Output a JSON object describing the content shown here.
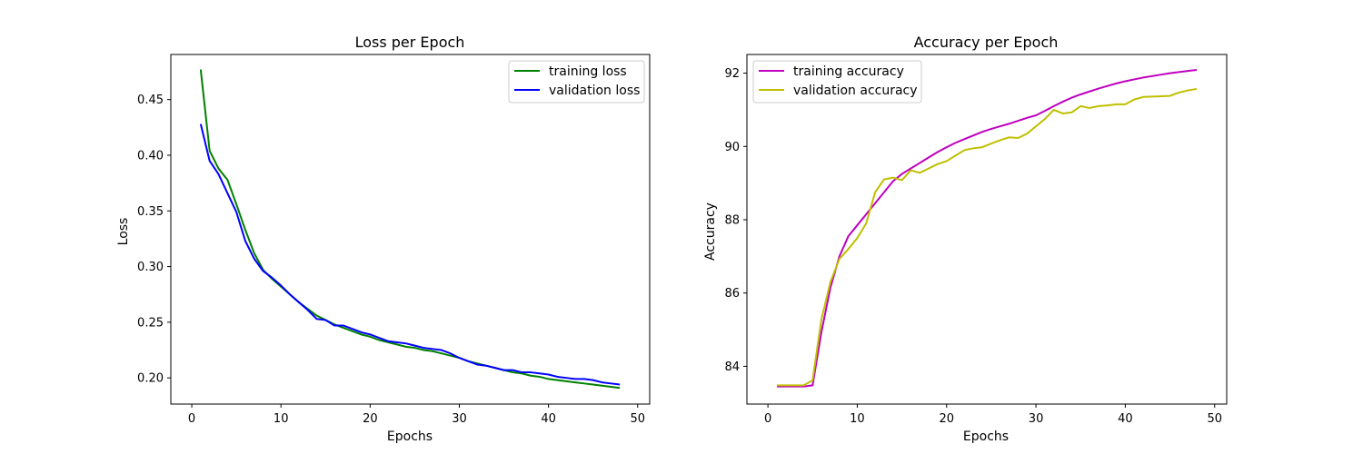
{
  "chart_data": [
    {
      "type": "line",
      "title": "Loss per Epoch",
      "xlabel": "Epochs",
      "ylabel": "Loss",
      "xlim": [
        -2.35,
        51.35
      ],
      "ylim": [
        0.1765,
        0.4905
      ],
      "xticks": [
        0,
        10,
        20,
        30,
        40,
        50
      ],
      "xtick_labels": [
        "0",
        "10",
        "20",
        "30",
        "40",
        "50"
      ],
      "yticks": [
        0.2,
        0.25,
        0.3,
        0.35,
        0.4,
        0.45
      ],
      "ytick_labels": [
        "0.20",
        "0.25",
        "0.30",
        "0.35",
        "0.40",
        "0.45"
      ],
      "grid": false,
      "legend": "top-right",
      "x": [
        1,
        2,
        3,
        4,
        5,
        6,
        7,
        8,
        9,
        10,
        11,
        12,
        13,
        14,
        15,
        16,
        17,
        18,
        19,
        20,
        21,
        22,
        23,
        24,
        25,
        26,
        27,
        28,
        29,
        30,
        31,
        32,
        33,
        34,
        35,
        36,
        37,
        38,
        39,
        40,
        41,
        42,
        43,
        44,
        45,
        46,
        47,
        48
      ],
      "series": [
        {
          "name": "training loss",
          "color": "#008000",
          "values": [
            0.477,
            0.404,
            0.388,
            0.378,
            0.356,
            0.333,
            0.312,
            0.297,
            0.289,
            0.282,
            0.275,
            0.268,
            0.262,
            0.256,
            0.252,
            0.248,
            0.245,
            0.242,
            0.239,
            0.237,
            0.234,
            0.232,
            0.23,
            0.228,
            0.227,
            0.225,
            0.224,
            0.222,
            0.22,
            0.218,
            0.215,
            0.213,
            0.211,
            0.209,
            0.207,
            0.205,
            0.204,
            0.202,
            0.201,
            0.199,
            0.198,
            0.197,
            0.196,
            0.195,
            0.194,
            0.193,
            0.192,
            0.191
          ]
        },
        {
          "name": "validation loss",
          "color": "#0000ff",
          "values": [
            0.428,
            0.395,
            0.383,
            0.366,
            0.349,
            0.323,
            0.307,
            0.296,
            0.29,
            0.283,
            0.275,
            0.268,
            0.261,
            0.253,
            0.252,
            0.247,
            0.247,
            0.244,
            0.241,
            0.239,
            0.236,
            0.233,
            0.232,
            0.231,
            0.229,
            0.227,
            0.226,
            0.225,
            0.222,
            0.218,
            0.215,
            0.212,
            0.211,
            0.209,
            0.207,
            0.207,
            0.205,
            0.205,
            0.204,
            0.203,
            0.201,
            0.2,
            0.199,
            0.199,
            0.198,
            0.196,
            0.195,
            0.194
          ]
        }
      ]
    },
    {
      "type": "line",
      "title": "Accuracy per Epoch",
      "xlabel": "Epochs",
      "ylabel": "Accuracy",
      "xlim": [
        -2.35,
        51.35
      ],
      "ylim": [
        82.97,
        92.51
      ],
      "xticks": [
        0,
        10,
        20,
        30,
        40,
        50
      ],
      "xtick_labels": [
        "0",
        "10",
        "20",
        "30",
        "40",
        "50"
      ],
      "yticks": [
        84,
        86,
        88,
        90,
        92
      ],
      "ytick_labels": [
        "84",
        "86",
        "88",
        "90",
        "92"
      ],
      "grid": false,
      "legend": "top-left",
      "x": [
        1,
        2,
        3,
        4,
        5,
        6,
        7,
        8,
        9,
        10,
        11,
        12,
        13,
        14,
        15,
        16,
        17,
        18,
        19,
        20,
        21,
        22,
        23,
        24,
        25,
        26,
        27,
        28,
        29,
        30,
        31,
        32,
        33,
        34,
        35,
        36,
        37,
        38,
        39,
        40,
        41,
        42,
        43,
        44,
        45,
        46,
        47,
        48
      ],
      "series": [
        {
          "name": "training accuracy",
          "color": "#bf00bf",
          "values": [
            83.45,
            83.45,
            83.45,
            83.45,
            83.48,
            84.95,
            86.15,
            87.0,
            87.55,
            87.85,
            88.15,
            88.45,
            88.75,
            89.05,
            89.25,
            89.4,
            89.55,
            89.7,
            89.85,
            89.98,
            90.1,
            90.2,
            90.3,
            90.4,
            90.48,
            90.55,
            90.62,
            90.7,
            90.78,
            90.85,
            90.97,
            91.1,
            91.22,
            91.33,
            91.42,
            91.5,
            91.58,
            91.65,
            91.72,
            91.78,
            91.83,
            91.88,
            91.92,
            91.96,
            92.0,
            92.03,
            92.06,
            92.09
          ]
        },
        {
          "name": "validation accuracy",
          "color": "#bfbf00",
          "values": [
            83.48,
            83.48,
            83.48,
            83.48,
            83.62,
            85.3,
            86.3,
            86.93,
            87.2,
            87.5,
            87.9,
            88.75,
            89.1,
            89.15,
            89.08,
            89.35,
            89.28,
            89.4,
            89.52,
            89.6,
            89.75,
            89.9,
            89.95,
            89.98,
            90.08,
            90.17,
            90.25,
            90.23,
            90.35,
            90.55,
            90.75,
            91.0,
            90.9,
            90.93,
            91.1,
            91.05,
            91.1,
            91.12,
            91.15,
            91.15,
            91.28,
            91.35,
            91.36,
            91.37,
            91.38,
            91.47,
            91.53,
            91.57
          ]
        }
      ]
    }
  ]
}
